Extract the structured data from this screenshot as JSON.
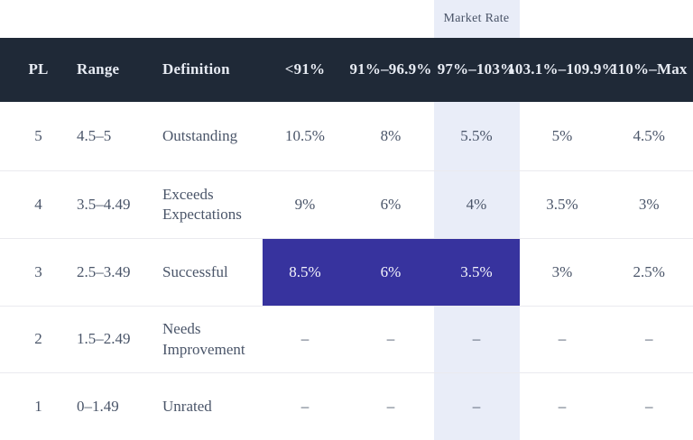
{
  "market_rate_label": "Market Rate",
  "colors": {
    "header_bg": "#1f2937",
    "header_text": "#e7ebf3",
    "body_text": "#4a5569",
    "market_column_highlight": "#e9edf8",
    "selection_bg": "#37339e",
    "selection_text": "#f5f5fc",
    "row_divider": "#eaeaef"
  },
  "table": {
    "columns": [
      {
        "label": "PL"
      },
      {
        "label": "Range"
      },
      {
        "label": "Definition"
      },
      {
        "label": "<91%"
      },
      {
        "label": "91%–96.9%"
      },
      {
        "label": "97%–103%"
      },
      {
        "label": "103.1%–109.9%"
      },
      {
        "label": "110%–Max"
      }
    ],
    "market_rate_column_index": 5,
    "rows": [
      {
        "pl": "5",
        "range": "4.5–5",
        "definition": "Outstanding",
        "values": [
          "10.5%",
          "8%",
          "5.5%",
          "5%",
          "4.5%"
        ]
      },
      {
        "pl": "4",
        "range": "3.5–4.49",
        "definition": "Exceeds Expectations",
        "values": [
          "9%",
          "6%",
          "4%",
          "3.5%",
          "3%"
        ]
      },
      {
        "pl": "3",
        "range": "2.5–3.49",
        "definition": "Successful",
        "values": [
          "8.5%",
          "6%",
          "3.5%",
          "3%",
          "2.5%"
        ],
        "selected_value_columns": [
          0,
          1,
          2
        ]
      },
      {
        "pl": "2",
        "range": "1.5–2.49",
        "definition": "Needs Improvement",
        "values": [
          "–",
          "–",
          "–",
          "–",
          "–"
        ]
      },
      {
        "pl": "1",
        "range": "0–1.49",
        "definition": "Unrated",
        "values": [
          "–",
          "–",
          "–",
          "–",
          "–"
        ]
      }
    ]
  }
}
